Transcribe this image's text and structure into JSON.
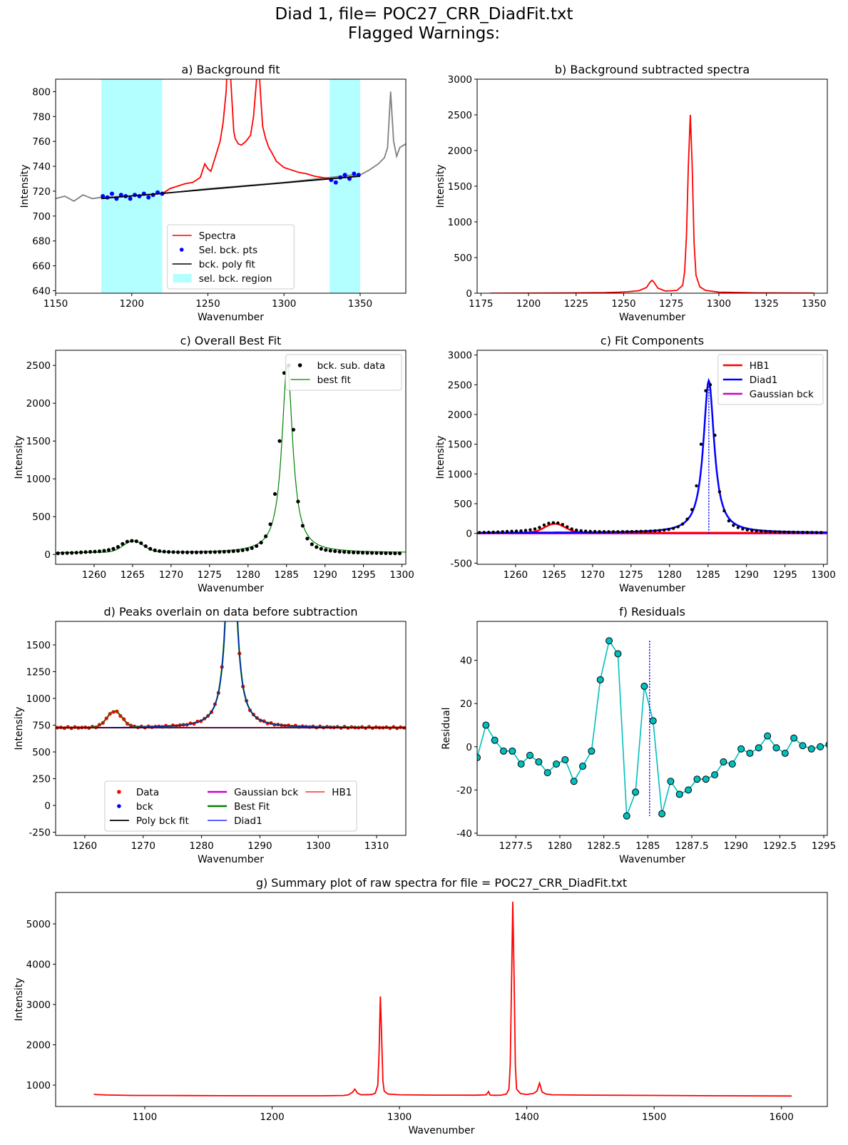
{
  "figure": {
    "title_line1": "Diad 1, file= POC27_CRR_DiadFit.txt",
    "title_line2": "Flagged Warnings:"
  },
  "chart_data": [
    {
      "id": "a",
      "type": "line",
      "title": "a) Background fit",
      "xlabel": "Wavenumber",
      "ylabel": "Intensity",
      "xlim": [
        1150,
        1380
      ],
      "ylim": [
        638,
        810
      ],
      "xticks": [
        1150,
        1200,
        1250,
        1300,
        1350
      ],
      "yticks": [
        640,
        660,
        680,
        700,
        720,
        740,
        760,
        780,
        800
      ],
      "legend_position": "lower-center",
      "regions": [
        {
          "name": "sel. bck. region",
          "x0": 1180,
          "x1": 1220,
          "color": "#b3ffff"
        },
        {
          "x0": 1330,
          "x1": 1350,
          "color": "#b3ffff"
        }
      ],
      "series": [
        {
          "name": "Spectra-raw",
          "color": "#808080",
          "x": [
            1150,
            1156,
            1162,
            1168,
            1174,
            1180,
            1195,
            1210,
            1220,
            1250,
            1300,
            1330,
            1345,
            1350,
            1356,
            1362,
            1366,
            1368,
            1370,
            1372,
            1374,
            1376,
            1380
          ],
          "y": [
            714,
            716,
            712,
            717,
            714,
            715,
            716,
            717,
            718,
            722,
            727,
            731,
            733,
            733,
            737,
            742,
            747,
            755,
            800,
            760,
            748,
            755,
            758
          ]
        },
        {
          "name": "Spectra",
          "color": "#ff0000",
          "x": [
            1220,
            1225,
            1230,
            1235,
            1240,
            1245,
            1248,
            1250,
            1252,
            1255,
            1258,
            1260,
            1262,
            1263,
            1265,
            1267,
            1268,
            1270,
            1272,
            1275,
            1278,
            1280,
            1282,
            1283,
            1285,
            1286,
            1288,
            1290,
            1292,
            1295,
            1300,
            1305,
            1310,
            1315,
            1320,
            1330,
            1340,
            1348
          ],
          "y": [
            718,
            722,
            724,
            726,
            727,
            731,
            742,
            738,
            736,
            748,
            760,
            775,
            800,
            830,
            810,
            768,
            762,
            758,
            757,
            760,
            765,
            780,
            810,
            830,
            790,
            772,
            762,
            755,
            751,
            744,
            739,
            737,
            735,
            734,
            732,
            730,
            731,
            732
          ]
        },
        {
          "name": "Sel. bck. pts",
          "color": "#0000ff",
          "kind": "scatter",
          "x": [
            1181,
            1184,
            1187,
            1190,
            1193,
            1196,
            1199,
            1202,
            1205,
            1208,
            1211,
            1214,
            1217,
            1220,
            1331,
            1334,
            1337,
            1340,
            1343,
            1346,
            1349
          ],
          "y": [
            716,
            715,
            718,
            714,
            717,
            716,
            714,
            717,
            716,
            718,
            715,
            717,
            719,
            718,
            729,
            727,
            731,
            733,
            730,
            734,
            733
          ]
        },
        {
          "name": "bck. poly fit",
          "color": "#000000",
          "x": [
            1180,
            1350
          ],
          "y": [
            714,
            732
          ]
        }
      ],
      "legend": [
        "Spectra",
        "Sel. bck. pts",
        "bck. poly fit",
        "sel. bck. region"
      ]
    },
    {
      "id": "b",
      "type": "line",
      "title": "b) Background subtracted spectra",
      "xlabel": "Wavenumber",
      "ylabel": "Intensity",
      "xlim": [
        1173,
        1357
      ],
      "ylim": [
        0,
        3000
      ],
      "xticks": [
        1175,
        1200,
        1225,
        1250,
        1275,
        1300,
        1325,
        1350
      ],
      "yticks": [
        0,
        500,
        1000,
        1500,
        2000,
        2500,
        3000
      ],
      "series": [
        {
          "color": "#ff0000",
          "x": [
            1180,
            1220,
            1240,
            1248,
            1252,
            1258,
            1262,
            1264,
            1265,
            1266,
            1268,
            1272,
            1278,
            1281,
            1282,
            1283,
            1284,
            1285,
            1286,
            1287,
            1288,
            1290,
            1293,
            1300,
            1320,
            1350
          ],
          "y": [
            0,
            3,
            8,
            15,
            20,
            35,
            80,
            160,
            180,
            150,
            70,
            30,
            40,
            110,
            300,
            800,
            1800,
            2500,
            1800,
            700,
            250,
            90,
            40,
            15,
            5,
            2
          ]
        }
      ]
    },
    {
      "id": "c1",
      "type": "line",
      "title": "c) Overall Best Fit",
      "xlabel": "Wavenumber",
      "ylabel": "Intensity",
      "xlim": [
        1255,
        1300.5
      ],
      "ylim": [
        -130,
        2700
      ],
      "xticks": [
        1260,
        1265,
        1270,
        1275,
        1280,
        1285,
        1290,
        1295,
        1300
      ],
      "yticks": [
        0,
        500,
        1000,
        1500,
        2000,
        2500
      ],
      "legend_position": "top-right",
      "legend": [
        "bck. sub. data",
        "best fit"
      ],
      "points": {
        "name": "bck. sub. data",
        "x": [
          1255.3,
          1255.9,
          1256.5,
          1257.1,
          1257.7,
          1258.3,
          1258.9,
          1259.5,
          1260.1,
          1260.7,
          1261.3,
          1261.9,
          1262.5,
          1263.1,
          1263.7,
          1264.3,
          1264.9,
          1265.5,
          1266.1,
          1266.7,
          1267.3,
          1267.9,
          1268.5,
          1269.1,
          1269.7,
          1270.3,
          1270.9,
          1271.5,
          1272.1,
          1272.7,
          1273.3,
          1273.9,
          1274.5,
          1275.1,
          1275.7,
          1276.3,
          1276.9,
          1277.5,
          1278.1,
          1278.7,
          1279.3,
          1279.9,
          1280.5,
          1281.1,
          1281.7,
          1282.3,
          1282.9,
          1283.5,
          1284.1,
          1284.7,
          1285.3,
          1285.9,
          1286.5,
          1287.1,
          1287.7,
          1288.3,
          1288.9,
          1289.5,
          1290.1,
          1290.7,
          1291.3,
          1291.9,
          1292.5,
          1293.1,
          1293.7,
          1294.3,
          1294.9,
          1295.5,
          1296.1,
          1296.7,
          1297.3,
          1297.9,
          1298.5,
          1299.1,
          1299.7
        ],
        "y": [
          15,
          17,
          19,
          21,
          24,
          28,
          32,
          35,
          38,
          42,
          50,
          60,
          75,
          100,
          140,
          170,
          180,
          175,
          150,
          110,
          75,
          55,
          45,
          38,
          34,
          32,
          30,
          29,
          28,
          28,
          28,
          29,
          30,
          31,
          32,
          34,
          36,
          39,
          43,
          48,
          56,
          67,
          84,
          111,
          157,
          240,
          400,
          800,
          1500,
          2400,
          2500,
          1650,
          700,
          380,
          210,
          135,
          98,
          75,
          60,
          50,
          43,
          37,
          33,
          30,
          27,
          25,
          23,
          21,
          20,
          19,
          18,
          17,
          16,
          15,
          15
        ]
      },
      "fit": {
        "name": "best fit",
        "color": "#008000"
      }
    },
    {
      "id": "c2",
      "type": "line",
      "title": "c) Fit Components",
      "xlabel": "Wavenumber",
      "ylabel": "Intensity",
      "xlim": [
        1255,
        1300.5
      ],
      "ylim": [
        -520,
        3080
      ],
      "xticks": [
        1260,
        1265,
        1270,
        1275,
        1280,
        1285,
        1290,
        1295,
        1300
      ],
      "yticks": [
        -500,
        0,
        500,
        1000,
        1500,
        2000,
        2500,
        3000
      ],
      "legend_position": "top-right",
      "legend": [
        {
          "name": "HB1",
          "color": "#ff0000"
        },
        {
          "name": "Diad1",
          "color": "#0000ff"
        },
        {
          "name": "Gaussian bck",
          "color": "#cc00cc"
        }
      ],
      "peak_center": 1285.1
    },
    {
      "id": "d",
      "type": "line",
      "title": "d) Peaks overlain on data before subtraction",
      "xlabel": "Wavenumber",
      "ylabel": "Intensity",
      "xlim": [
        1255,
        1315
      ],
      "ylim": [
        -280,
        1720
      ],
      "xticks": [
        1260,
        1270,
        1280,
        1290,
        1300,
        1310
      ],
      "yticks": [
        -250,
        0,
        250,
        500,
        750,
        1000,
        1250,
        1500
      ],
      "legend_position": "lower-center",
      "legend": [
        {
          "name": "Data",
          "color": "#ff0000",
          "kind": "dot"
        },
        {
          "name": "bck",
          "color": "#0000ff",
          "kind": "dot"
        },
        {
          "name": "Poly bck fit",
          "color": "#000000",
          "kind": "line"
        },
        {
          "name": "Gaussian bck",
          "color": "#cc00cc",
          "kind": "line"
        },
        {
          "name": "Best Fit",
          "color": "#008000",
          "kind": "line"
        },
        {
          "name": "Diad1",
          "color": "#0000ff",
          "kind": "thinline"
        },
        {
          "name": "HB1",
          "color": "#ff0000",
          "kind": "thinline"
        }
      ],
      "baseline": 725
    },
    {
      "id": "f",
      "type": "line",
      "title": "f) Residuals",
      "xlabel": "Wavenumber",
      "ylabel": "Residual",
      "xlim": [
        1275.3,
        1295.2
      ],
      "ylim": [
        -41,
        58
      ],
      "xticks": [
        1277.5,
        1280.0,
        1282.5,
        1285.0,
        1287.5,
        1290.0,
        1292.5,
        1295.0
      ],
      "yticks": [
        -40,
        -20,
        0,
        20,
        40
      ],
      "vline": 1285.1,
      "points": {
        "x": [
          1275.3,
          1275.8,
          1276.3,
          1276.8,
          1277.3,
          1277.8,
          1278.3,
          1278.8,
          1279.3,
          1279.8,
          1280.3,
          1280.8,
          1281.3,
          1281.8,
          1282.3,
          1282.8,
          1283.3,
          1283.8,
          1284.3,
          1284.8,
          1285.3,
          1285.8,
          1286.3,
          1286.8,
          1287.3,
          1287.8,
          1288.3,
          1288.8,
          1289.3,
          1289.8,
          1290.3,
          1290.8,
          1291.3,
          1291.8,
          1292.3,
          1292.8,
          1293.3,
          1293.8,
          1294.3,
          1294.8,
          1295.3
        ],
        "y": [
          -5,
          10,
          3,
          -2,
          -2,
          -8,
          -4,
          -7,
          -12,
          -8,
          -6,
          -16,
          -9,
          -2,
          31,
          49,
          43,
          -32,
          -21,
          28,
          12,
          -31,
          -16,
          -22,
          -20,
          -15,
          -15,
          -13,
          -7,
          -8,
          -1,
          -3,
          -0.5,
          5,
          -0.5,
          -3,
          4,
          0.5,
          -1,
          0,
          1
        ]
      }
    },
    {
      "id": "g",
      "type": "line",
      "title": "g) Summary plot of raw spectra for file = POC27_CRR_DiadFit.txt",
      "xlabel": "Wavenumber",
      "ylabel": "Intensity",
      "xlim": [
        1030,
        1636
      ],
      "ylim": [
        470,
        5780
      ],
      "xticks": [
        1100,
        1200,
        1300,
        1400,
        1500,
        1600
      ],
      "yticks": [
        1000,
        2000,
        3000,
        4000,
        5000
      ],
      "series": [
        {
          "color": "#ff0000",
          "x": [
            1060,
            1070,
            1090,
            1120,
            1160,
            1200,
            1240,
            1256,
            1260,
            1263,
            1265,
            1267,
            1270,
            1278,
            1281,
            1283,
            1284,
            1285,
            1286,
            1287,
            1288,
            1291,
            1300,
            1330,
            1360,
            1368,
            1370,
            1371,
            1372,
            1374,
            1380,
            1384,
            1386,
            1387,
            1388,
            1389,
            1390,
            1391,
            1392,
            1395,
            1400,
            1405,
            1408,
            1410,
            1412,
            1415,
            1420,
            1450,
            1500,
            1550,
            1608
          ],
          "y": [
            770,
            755,
            745,
            742,
            738,
            735,
            736,
            742,
            760,
            820,
            900,
            800,
            760,
            765,
            800,
            1000,
            1800,
            3200,
            2200,
            1100,
            850,
            780,
            760,
            752,
            750,
            760,
            840,
            760,
            752,
            748,
            752,
            780,
            900,
            1500,
            3500,
            5550,
            3700,
            1500,
            900,
            790,
            770,
            790,
            850,
            1050,
            830,
            780,
            760,
            752,
            745,
            735,
            730
          ]
        }
      ]
    }
  ]
}
